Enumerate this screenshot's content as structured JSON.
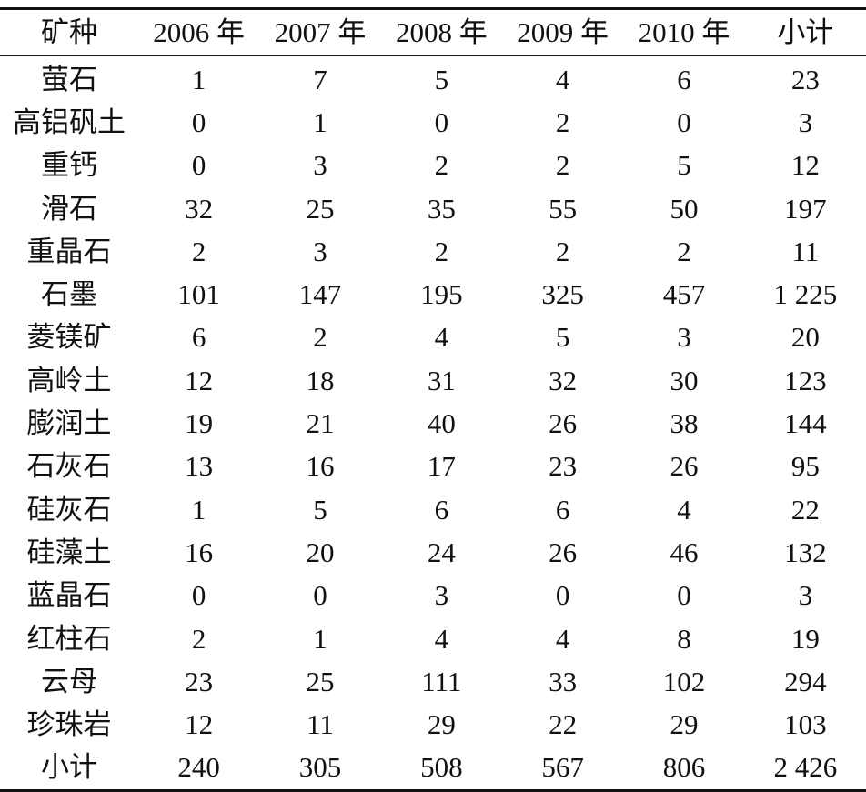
{
  "table": {
    "headers": [
      "矿种",
      "2006 年",
      "2007 年",
      "2008 年",
      "2009 年",
      "2010 年",
      "小计"
    ],
    "rows": [
      [
        "萤石",
        "1",
        "7",
        "5",
        "4",
        "6",
        "23"
      ],
      [
        "高铝矾土",
        "0",
        "1",
        "0",
        "2",
        "0",
        "3"
      ],
      [
        "重钙",
        "0",
        "3",
        "2",
        "2",
        "5",
        "12"
      ],
      [
        "滑石",
        "32",
        "25",
        "35",
        "55",
        "50",
        "197"
      ],
      [
        "重晶石",
        "2",
        "3",
        "2",
        "2",
        "2",
        "11"
      ],
      [
        "石墨",
        "101",
        "147",
        "195",
        "325",
        "457",
        "1 225"
      ],
      [
        "菱镁矿",
        "6",
        "2",
        "4",
        "5",
        "3",
        "20"
      ],
      [
        "高岭土",
        "12",
        "18",
        "31",
        "32",
        "30",
        "123"
      ],
      [
        "膨润土",
        "19",
        "21",
        "40",
        "26",
        "38",
        "144"
      ],
      [
        "石灰石",
        "13",
        "16",
        "17",
        "23",
        "26",
        "95"
      ],
      [
        "硅灰石",
        "1",
        "5",
        "6",
        "6",
        "4",
        "22"
      ],
      [
        "硅藻土",
        "16",
        "20",
        "24",
        "26",
        "46",
        "132"
      ],
      [
        "蓝晶石",
        "0",
        "0",
        "3",
        "0",
        "0",
        "3"
      ],
      [
        "红柱石",
        "2",
        "1",
        "4",
        "4",
        "8",
        "19"
      ],
      [
        "云母",
        "23",
        "25",
        "111",
        "33",
        "102",
        "294"
      ],
      [
        "珍珠岩",
        "12",
        "11",
        "29",
        "22",
        "29",
        "103"
      ],
      [
        "小计",
        "240",
        "305",
        "508",
        "567",
        "806",
        "2 426"
      ]
    ]
  }
}
